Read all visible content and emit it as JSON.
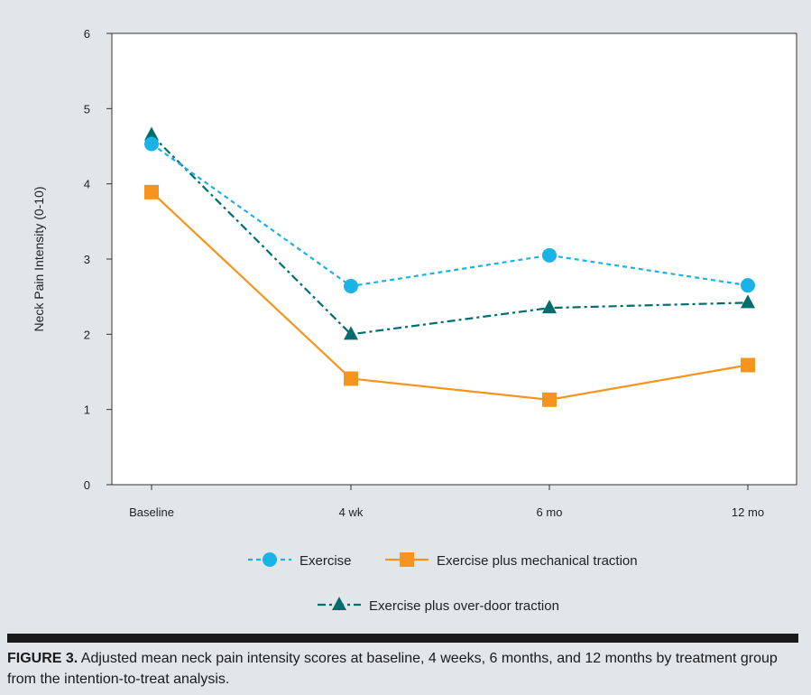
{
  "chart_data": {
    "type": "line",
    "categories": [
      "Baseline",
      "4 wk",
      "6 mo",
      "12 mo"
    ],
    "ylabel": "Neck Pain Intensity (0-10)",
    "xlabel": "",
    "ylim": [
      0,
      6
    ],
    "yticks": [
      "0",
      "1",
      "2",
      "3",
      "4",
      "5",
      "6"
    ],
    "grid": false,
    "legend_position": "bottom",
    "series": [
      {
        "name": "Exercise",
        "values": [
          4.53,
          2.64,
          3.05,
          2.65
        ],
        "color": "#1ab3e6",
        "marker": "circle",
        "line_style": "dashed"
      },
      {
        "name": "Exercise plus mechanical traction",
        "values": [
          3.89,
          1.41,
          1.13,
          1.59
        ],
        "color": "#f7941d",
        "marker": "square",
        "line_style": "solid"
      },
      {
        "name": "Exercise plus over-door traction",
        "values": [
          4.65,
          2.0,
          2.35,
          2.42
        ],
        "color": "#006d6f",
        "marker": "triangle",
        "line_style": "dashdot"
      }
    ]
  },
  "caption": {
    "label": "FIGURE 3.",
    "text": " Adjusted mean neck pain intensity scores at baseline, 4 weeks, 6 months, and 12 months by treatment group from the intention-to-treat analysis."
  }
}
